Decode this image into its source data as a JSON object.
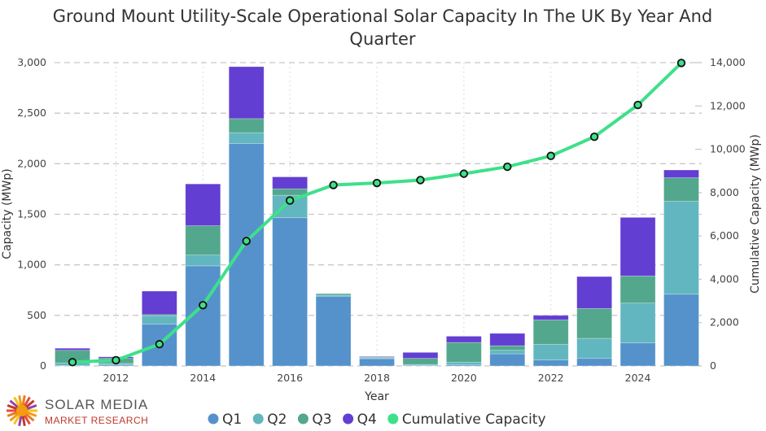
{
  "chart_data": {
    "type": "bar",
    "stacked": true,
    "title": "Ground Mount Utility-Scale Operational Solar Capacity In The UK By Year And Quarter",
    "title_lines": [
      "Ground Mount Utility-Scale Operational Solar Capacity In The UK By Year And",
      "Quarter"
    ],
    "xlabel": "Year",
    "ylabel": "Capacity (MWp)",
    "y2label": "Cumulative Capacity (MWp)",
    "categories": [
      2011,
      2012,
      2013,
      2014,
      2015,
      2016,
      2017,
      2018,
      2019,
      2020,
      2021,
      2022,
      2023,
      2024,
      2025
    ],
    "xticks": [
      "2012",
      "2014",
      "2016",
      "2018",
      "2020",
      "2022",
      "2024"
    ],
    "ylim": [
      0,
      3000
    ],
    "yticks": [
      "0",
      "500",
      "1,000",
      "1,500",
      "2,000",
      "2,500",
      "3,000"
    ],
    "y2lim": [
      0,
      14000
    ],
    "y2ticks": [
      "0",
      "2,000",
      "4,000",
      "6,000",
      "8,000",
      "10,000",
      "12,000",
      "14,000"
    ],
    "grid": true,
    "legend_position": "bottom",
    "series": [
      {
        "name": "Q1",
        "color": "#5592cb",
        "values": [
          5,
          10,
          415,
          990,
          2200,
          1466,
          690,
          72,
          5,
          10,
          120,
          59,
          75,
          228,
          710
        ]
      },
      {
        "name": "Q2",
        "color": "#62b6c0",
        "values": [
          25,
          15,
          80,
          107,
          107,
          222,
          10,
          8,
          10,
          27,
          35,
          155,
          198,
          394,
          919
        ]
      },
      {
        "name": "Q3",
        "color": "#53a78c",
        "values": [
          125,
          50,
          13,
          290,
          139,
          64,
          15,
          8,
          60,
          195,
          45,
          241,
          295,
          268,
          233
        ]
      },
      {
        "name": "Q4",
        "color": "#623ed2",
        "values": [
          20,
          15,
          232,
          413,
          514,
          118,
          0,
          6,
          59,
          62,
          122,
          45,
          316,
          579,
          76
        ]
      },
      {
        "name": "Cumulative Capacity",
        "color": "#3ee08a",
        "type": "line",
        "axis": "right",
        "values": [
          175,
          265,
          1005,
          2805,
          5765,
          7635,
          8350,
          8444,
          8578,
          8872,
          9194,
          9694,
          10578,
          12047,
          13985
        ]
      }
    ]
  },
  "logo": {
    "line1": "SOLAR MEDIA",
    "line2": "MARKET RESEARCH"
  }
}
